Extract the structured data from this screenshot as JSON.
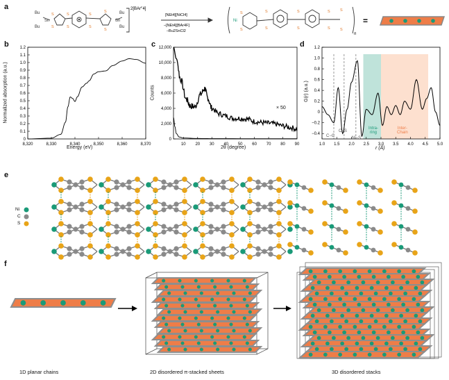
{
  "panels": {
    "a": "a",
    "b": "b",
    "c": "c",
    "d": "d",
    "e": "e",
    "f": "f"
  },
  "scheme": {
    "reactant_charge": "2[BAr",
    "reactant_charge_sub": "F",
    "reactant_charge_tail": "4]",
    "bu": "Bu",
    "sn": "Sn",
    "s": "S",
    "reagent_top": "[NEt4][NiCl4]",
    "reagent_bottom1": "–[NEt4][BAr4F]",
    "reagent_bottom2": "–Bu2SnCl2",
    "ni": "Ni",
    "n": "n",
    "equals": "="
  },
  "panel_b": {
    "ylabel": "Normalized absorption (a.u.)",
    "xlabel": "Energy (eV)",
    "yticks": [
      "0",
      "0.1",
      "0.2",
      "0.3",
      "0.4",
      "0.5",
      "0.6",
      "0.7",
      "0.8",
      "0.9",
      "1.0",
      "1.1",
      "1.2"
    ],
    "xticks": [
      "8,320",
      "8,330",
      "8,340",
      "8,350",
      "8,360",
      "8,370"
    ]
  },
  "panel_c": {
    "ylabel": "Counts",
    "xlabel": "2θ (degree)",
    "yticks": [
      "0",
      "2,000",
      "4,000",
      "6,000",
      "8,000",
      "10,000",
      "12,000"
    ],
    "xticks": [
      "10",
      "20",
      "30",
      "40",
      "50",
      "60",
      "70",
      "80",
      "90"
    ],
    "annotation": "× 50"
  },
  "panel_d": {
    "ylabel": "G(r) (a.u.)",
    "xlabel": "r (Å)",
    "yticks": [
      "−0.4",
      "−0.2",
      "0",
      "0.2",
      "0.4",
      "0.6",
      "0.8",
      "1.0",
      "1.2"
    ],
    "xticks": [
      "1.0",
      "1.5",
      "2.0",
      "2.5",
      "3.0",
      "3.5",
      "4.0",
      "4.5",
      "5.0"
    ],
    "labels": {
      "cc": "C−C",
      "cs": "C−S",
      "nis": "Ni−S",
      "intra1": "Intra-",
      "intra2": "ring",
      "inter1": "Inter-",
      "inter2": "Chain"
    },
    "colors": {
      "intra": "#bfe3da",
      "inter": "#fde0cf"
    }
  },
  "panel_e": {
    "legend": [
      "Ni",
      "C",
      "S"
    ],
    "colors": {
      "ni": "#1a9a78",
      "c": "#8a8a8a",
      "s": "#e8a418"
    }
  },
  "panel_f": {
    "captions": [
      "1D planar chains",
      "2D disordered π-stacked sheets",
      "3D disordered stacks"
    ],
    "colors": {
      "orange": "#ee7d48",
      "gray": "#8e8e8e",
      "teal": "#1a9a78"
    }
  },
  "chart_data": [
    {
      "type": "line",
      "panel": "b",
      "xlabel": "Energy (eV)",
      "ylabel": "Normalized absorption (a.u.)",
      "xlim": [
        8320,
        8370
      ],
      "ylim": [
        0,
        1.2
      ],
      "x": [
        8320,
        8330,
        8334,
        8336,
        8337,
        8338,
        8339,
        8340,
        8341,
        8343,
        8345,
        8346,
        8348,
        8350,
        8353,
        8356,
        8360,
        8363,
        8366,
        8370
      ],
      "y": [
        0.0,
        0.01,
        0.06,
        0.22,
        0.42,
        0.55,
        0.53,
        0.49,
        0.55,
        0.68,
        0.73,
        0.76,
        0.85,
        0.88,
        0.89,
        0.96,
        1.02,
        1.05,
        1.04,
        0.99
      ]
    },
    {
      "type": "line",
      "panel": "c",
      "xlabel": "2θ (degree)",
      "ylabel": "Counts",
      "xlim": [
        3,
        90
      ],
      "ylim": [
        0,
        12000
      ],
      "x": [
        3,
        5,
        8,
        12,
        15,
        18,
        22,
        25,
        27,
        30,
        35,
        40,
        45,
        50,
        55,
        60,
        65,
        70,
        75,
        80,
        85,
        90
      ],
      "y": [
        12000,
        10500,
        7800,
        5200,
        4300,
        4200,
        5800,
        6600,
        5400,
        4000,
        3300,
        3000,
        2700,
        2700,
        2600,
        2300,
        2150,
        2050,
        1950,
        1700,
        1500,
        1300
      ]
    },
    {
      "type": "line",
      "panel": "d",
      "xlabel": "r (Å)",
      "ylabel": "G(r) (a.u.)",
      "xlim": [
        1.0,
        5.0
      ],
      "ylim": [
        -0.5,
        1.2
      ],
      "x": [
        1.0,
        1.2,
        1.4,
        1.55,
        1.7,
        1.85,
        2.0,
        2.2,
        2.35,
        2.5,
        2.7,
        2.9,
        3.05,
        3.2,
        3.35,
        3.5,
        3.65,
        3.8,
        4.0,
        4.2,
        4.4,
        4.55,
        4.7,
        4.85,
        5.0
      ],
      "y": [
        0.1,
        -0.05,
        -0.2,
        0.45,
        -0.4,
        0.05,
        0.55,
        0.95,
        -0.45,
        0.05,
        -0.05,
        0.35,
        -0.25,
        0.1,
        -0.05,
        0.12,
        -0.05,
        0.2,
        0.05,
        0.6,
        0.05,
        0.25,
        0.45,
        0.0,
        -0.25
      ]
    }
  ]
}
